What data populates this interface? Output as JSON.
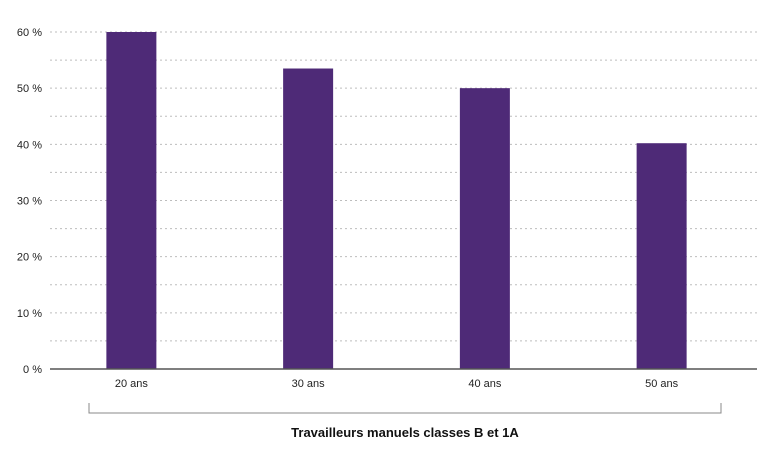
{
  "chart_data": {
    "type": "bar",
    "categories": [
      "20 ans",
      "30 ans",
      "40 ans",
      "50 ans"
    ],
    "values": [
      60,
      53.5,
      50,
      40.2
    ],
    "ylim": [
      0,
      60
    ],
    "yticks": [
      0,
      10,
      20,
      30,
      40,
      50,
      60
    ],
    "ytick_labels": [
      "0 %",
      "10 %",
      "20 %",
      "30 %",
      "40 %",
      "50 %",
      "60 %"
    ],
    "minor_grid_step": 5,
    "grid": true,
    "grid_style": "dotted",
    "group_label": "Travailleurs manuels classes B et 1A",
    "bar_color": "#4e2a77",
    "axis_color": "#555555",
    "grid_color": "#bdbdbd"
  }
}
